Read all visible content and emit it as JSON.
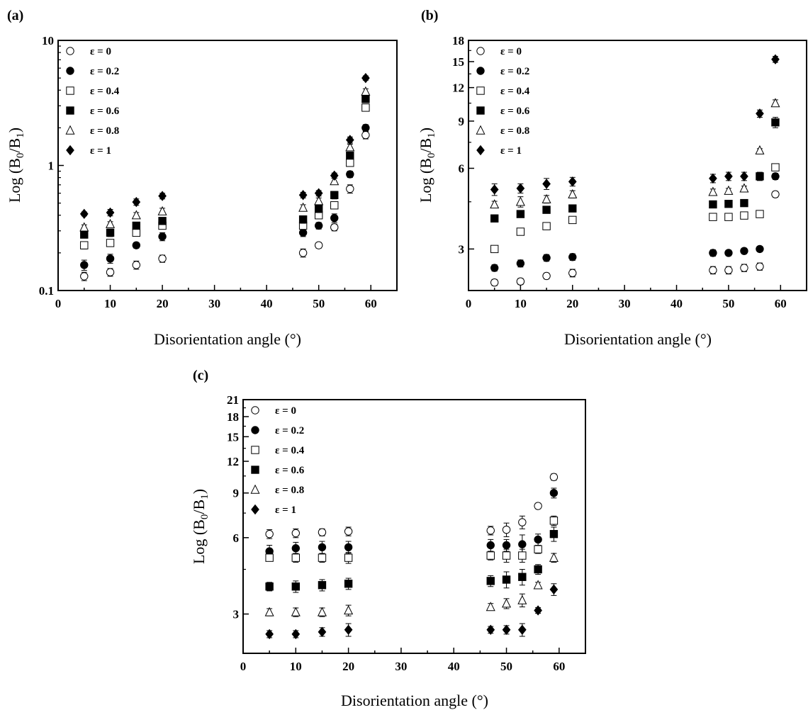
{
  "chart_data": [
    {
      "type": "scatter",
      "panel_label": "(a)",
      "xlabel": "Disorientation angle (°)",
      "ylabel": "Log (B0/B1)",
      "ylabel_sub": [
        "0",
        "1"
      ],
      "xlim": [
        0,
        65
      ],
      "ylim": [
        0.1,
        10
      ],
      "yscale": "log",
      "xticks": [
        0,
        10,
        20,
        30,
        40,
        50,
        60
      ],
      "yticks": [
        0.1,
        1,
        10
      ],
      "ytick_labels": [
        "0.1",
        "1",
        "10"
      ],
      "legend_position": "top-left",
      "x": [
        5,
        10,
        15,
        20,
        47,
        50,
        53,
        56,
        59
      ],
      "series": [
        {
          "name": "ε =  0",
          "marker": "circle-open",
          "values": [
            0.13,
            0.14,
            0.16,
            0.18,
            0.2,
            0.23,
            0.32,
            0.65,
            1.75
          ],
          "errors": [
            0.01,
            0.01,
            0.012,
            0.012,
            0.015,
            0.012,
            0.02,
            0.05,
            0.12
          ]
        },
        {
          "name": "ε =  0.2",
          "marker": "circle-filled",
          "values": [
            0.16,
            0.18,
            0.23,
            0.27,
            0.29,
            0.33,
            0.38,
            0.85,
            2.0
          ],
          "errors": [
            0.015,
            0.015,
            0.012,
            0.02,
            0.02,
            0.02,
            0.03,
            0.05,
            0.12
          ]
        },
        {
          "name": "ε =  0.4",
          "marker": "square-open",
          "values": [
            0.23,
            0.24,
            0.29,
            0.33,
            0.33,
            0.4,
            0.48,
            1.05,
            2.9
          ],
          "errors": [
            0.015,
            0.012,
            0.015,
            0.02,
            0.02,
            0.025,
            0.03,
            0.06,
            0.15
          ]
        },
        {
          "name": "ε =  0.6",
          "marker": "square-filled",
          "values": [
            0.28,
            0.29,
            0.33,
            0.36,
            0.37,
            0.45,
            0.58,
            1.2,
            3.4
          ],
          "errors": [
            0.015,
            0.02,
            0.015,
            0.02,
            0.025,
            0.03,
            0.04,
            0.07,
            0.2
          ]
        },
        {
          "name": "ε =  0.8",
          "marker": "triangle-open",
          "values": [
            0.32,
            0.34,
            0.4,
            0.43,
            0.46,
            0.52,
            0.75,
            1.4,
            3.9
          ],
          "errors": [
            0.015,
            0.015,
            0.02,
            0.025,
            0.025,
            0.03,
            0.04,
            0.08,
            0.2
          ]
        },
        {
          "name": "ε =  1",
          "marker": "diamond-filled",
          "values": [
            0.41,
            0.42,
            0.51,
            0.57,
            0.58,
            0.6,
            0.83,
            1.6,
            5.0
          ],
          "errors": [
            0.015,
            0.025,
            0.03,
            0.03,
            0.03,
            0.03,
            0.04,
            0.09,
            0.2
          ]
        }
      ]
    },
    {
      "type": "scatter",
      "panel_label": "(b)",
      "xlabel": "Disorientation angle (°)",
      "ylabel": "Log (B0/B1)",
      "ylabel_sub": [
        "0",
        "1"
      ],
      "xlim": [
        0,
        65
      ],
      "ylim": [
        2.1,
        18
      ],
      "yscale": "log",
      "xticks": [
        0,
        10,
        20,
        30,
        40,
        50,
        60
      ],
      "yticks": [
        3,
        6,
        9,
        12,
        15,
        18
      ],
      "ytick_labels": [
        "3",
        "6",
        "9",
        "12",
        "15",
        "18"
      ],
      "legend_position": "top-left",
      "x": [
        5,
        10,
        15,
        20,
        47,
        50,
        53,
        56,
        59
      ],
      "series": [
        {
          "name": "ε =  0",
          "marker": "circle-open",
          "values": [
            2.25,
            2.27,
            2.38,
            2.44,
            2.5,
            2.5,
            2.55,
            2.58,
            4.8
          ],
          "errors": [
            0.06,
            0.06,
            0.06,
            0.08,
            0.08,
            0.08,
            0.08,
            0.08,
            0.12
          ]
        },
        {
          "name": "ε =  0.2",
          "marker": "circle-filled",
          "values": [
            2.55,
            2.65,
            2.78,
            2.8,
            2.9,
            2.9,
            2.95,
            3.0,
            5.6
          ],
          "errors": [
            0.07,
            0.08,
            0.08,
            0.08,
            0.08,
            0.07,
            0.07,
            0.07,
            0.15
          ]
        },
        {
          "name": "ε =  0.4",
          "marker": "square-open",
          "values": [
            3.0,
            3.48,
            3.65,
            3.85,
            3.95,
            3.95,
            4.0,
            4.05,
            6.05
          ],
          "errors": [
            0.06,
            0.1,
            0.06,
            0.1,
            0.1,
            0.1,
            0.1,
            0.12,
            0.12
          ]
        },
        {
          "name": "ε =  0.6",
          "marker": "square-filled",
          "values": [
            3.9,
            4.05,
            4.2,
            4.25,
            4.4,
            4.42,
            4.45,
            5.6,
            8.9
          ],
          "errors": [
            0.12,
            0.1,
            0.1,
            0.12,
            0.1,
            0.1,
            0.1,
            0.2,
            0.4
          ]
        },
        {
          "name": "ε =  0.8",
          "marker": "triangle-open",
          "values": [
            4.4,
            4.5,
            4.6,
            4.8,
            4.9,
            4.95,
            5.05,
            7.0,
            10.5
          ],
          "errors": [
            0.12,
            0.2,
            0.15,
            0.15,
            0.12,
            0.1,
            0.1,
            0.1,
            0.3
          ]
        },
        {
          "name": "ε =  1",
          "marker": "diamond-filled",
          "values": [
            5.0,
            5.05,
            5.25,
            5.35,
            5.5,
            5.6,
            5.6,
            9.6,
            15.3
          ],
          "errors": [
            0.25,
            0.2,
            0.25,
            0.2,
            0.2,
            0.2,
            0.2,
            0.3,
            0.4
          ]
        }
      ]
    },
    {
      "type": "scatter",
      "panel_label": "(c)",
      "xlabel": "Disorientation angle (°)",
      "ylabel": "Log (B0/B1)",
      "ylabel_sub": [
        "0",
        "1"
      ],
      "xlim": [
        0,
        65
      ],
      "ylim": [
        2.1,
        21
      ],
      "yscale": "log",
      "xticks": [
        0,
        10,
        20,
        30,
        40,
        50,
        60
      ],
      "yticks": [
        3,
        6,
        9,
        12,
        15,
        18,
        21
      ],
      "ytick_labels": [
        "3",
        "6",
        "9",
        "12",
        "15",
        "18",
        "21"
      ],
      "legend_position": "top-left",
      "x": [
        5,
        10,
        15,
        20,
        47,
        50,
        53,
        56,
        59
      ],
      "series": [
        {
          "name": "ε =  0",
          "marker": "circle-open",
          "values": [
            6.2,
            6.25,
            6.3,
            6.35,
            6.4,
            6.45,
            6.9,
            8.0,
            10.4
          ],
          "errors": [
            0.25,
            0.25,
            0.2,
            0.25,
            0.25,
            0.4,
            0.4,
            0.2,
            0.3
          ]
        },
        {
          "name": "ε =  0.2",
          "marker": "circle-filled",
          "values": [
            5.3,
            5.45,
            5.5,
            5.5,
            5.6,
            5.6,
            5.65,
            5.9,
            9.0
          ],
          "errors": [
            0.3,
            0.3,
            0.3,
            0.3,
            0.3,
            0.3,
            0.5,
            0.3,
            0.4
          ]
        },
        {
          "name": "ε =  0.4",
          "marker": "square-open",
          "values": [
            5.0,
            5.0,
            5.0,
            5.0,
            5.1,
            5.1,
            5.1,
            5.4,
            7.0
          ],
          "errors": [
            0.15,
            0.2,
            0.2,
            0.25,
            0.2,
            0.3,
            0.3,
            0.2,
            0.3
          ]
        },
        {
          "name": "ε =  0.6",
          "marker": "square-filled",
          "values": [
            3.85,
            3.85,
            3.9,
            3.95,
            4.05,
            4.1,
            4.2,
            4.5,
            6.2
          ],
          "errors": [
            0.15,
            0.2,
            0.2,
            0.2,
            0.2,
            0.3,
            0.3,
            0.2,
            0.4
          ]
        },
        {
          "name": "ε =  0.8",
          "marker": "triangle-open",
          "values": [
            3.05,
            3.05,
            3.05,
            3.1,
            3.2,
            3.3,
            3.4,
            3.9,
            5.0
          ],
          "errors": [
            0.1,
            0.12,
            0.12,
            0.15,
            0.1,
            0.15,
            0.2,
            0.1,
            0.2
          ]
        },
        {
          "name": "ε =  1",
          "marker": "diamond-filled",
          "values": [
            2.5,
            2.5,
            2.55,
            2.6,
            2.6,
            2.6,
            2.6,
            3.1,
            3.75
          ],
          "errors": [
            0.08,
            0.08,
            0.1,
            0.15,
            0.08,
            0.1,
            0.15,
            0.08,
            0.2
          ]
        }
      ]
    }
  ]
}
